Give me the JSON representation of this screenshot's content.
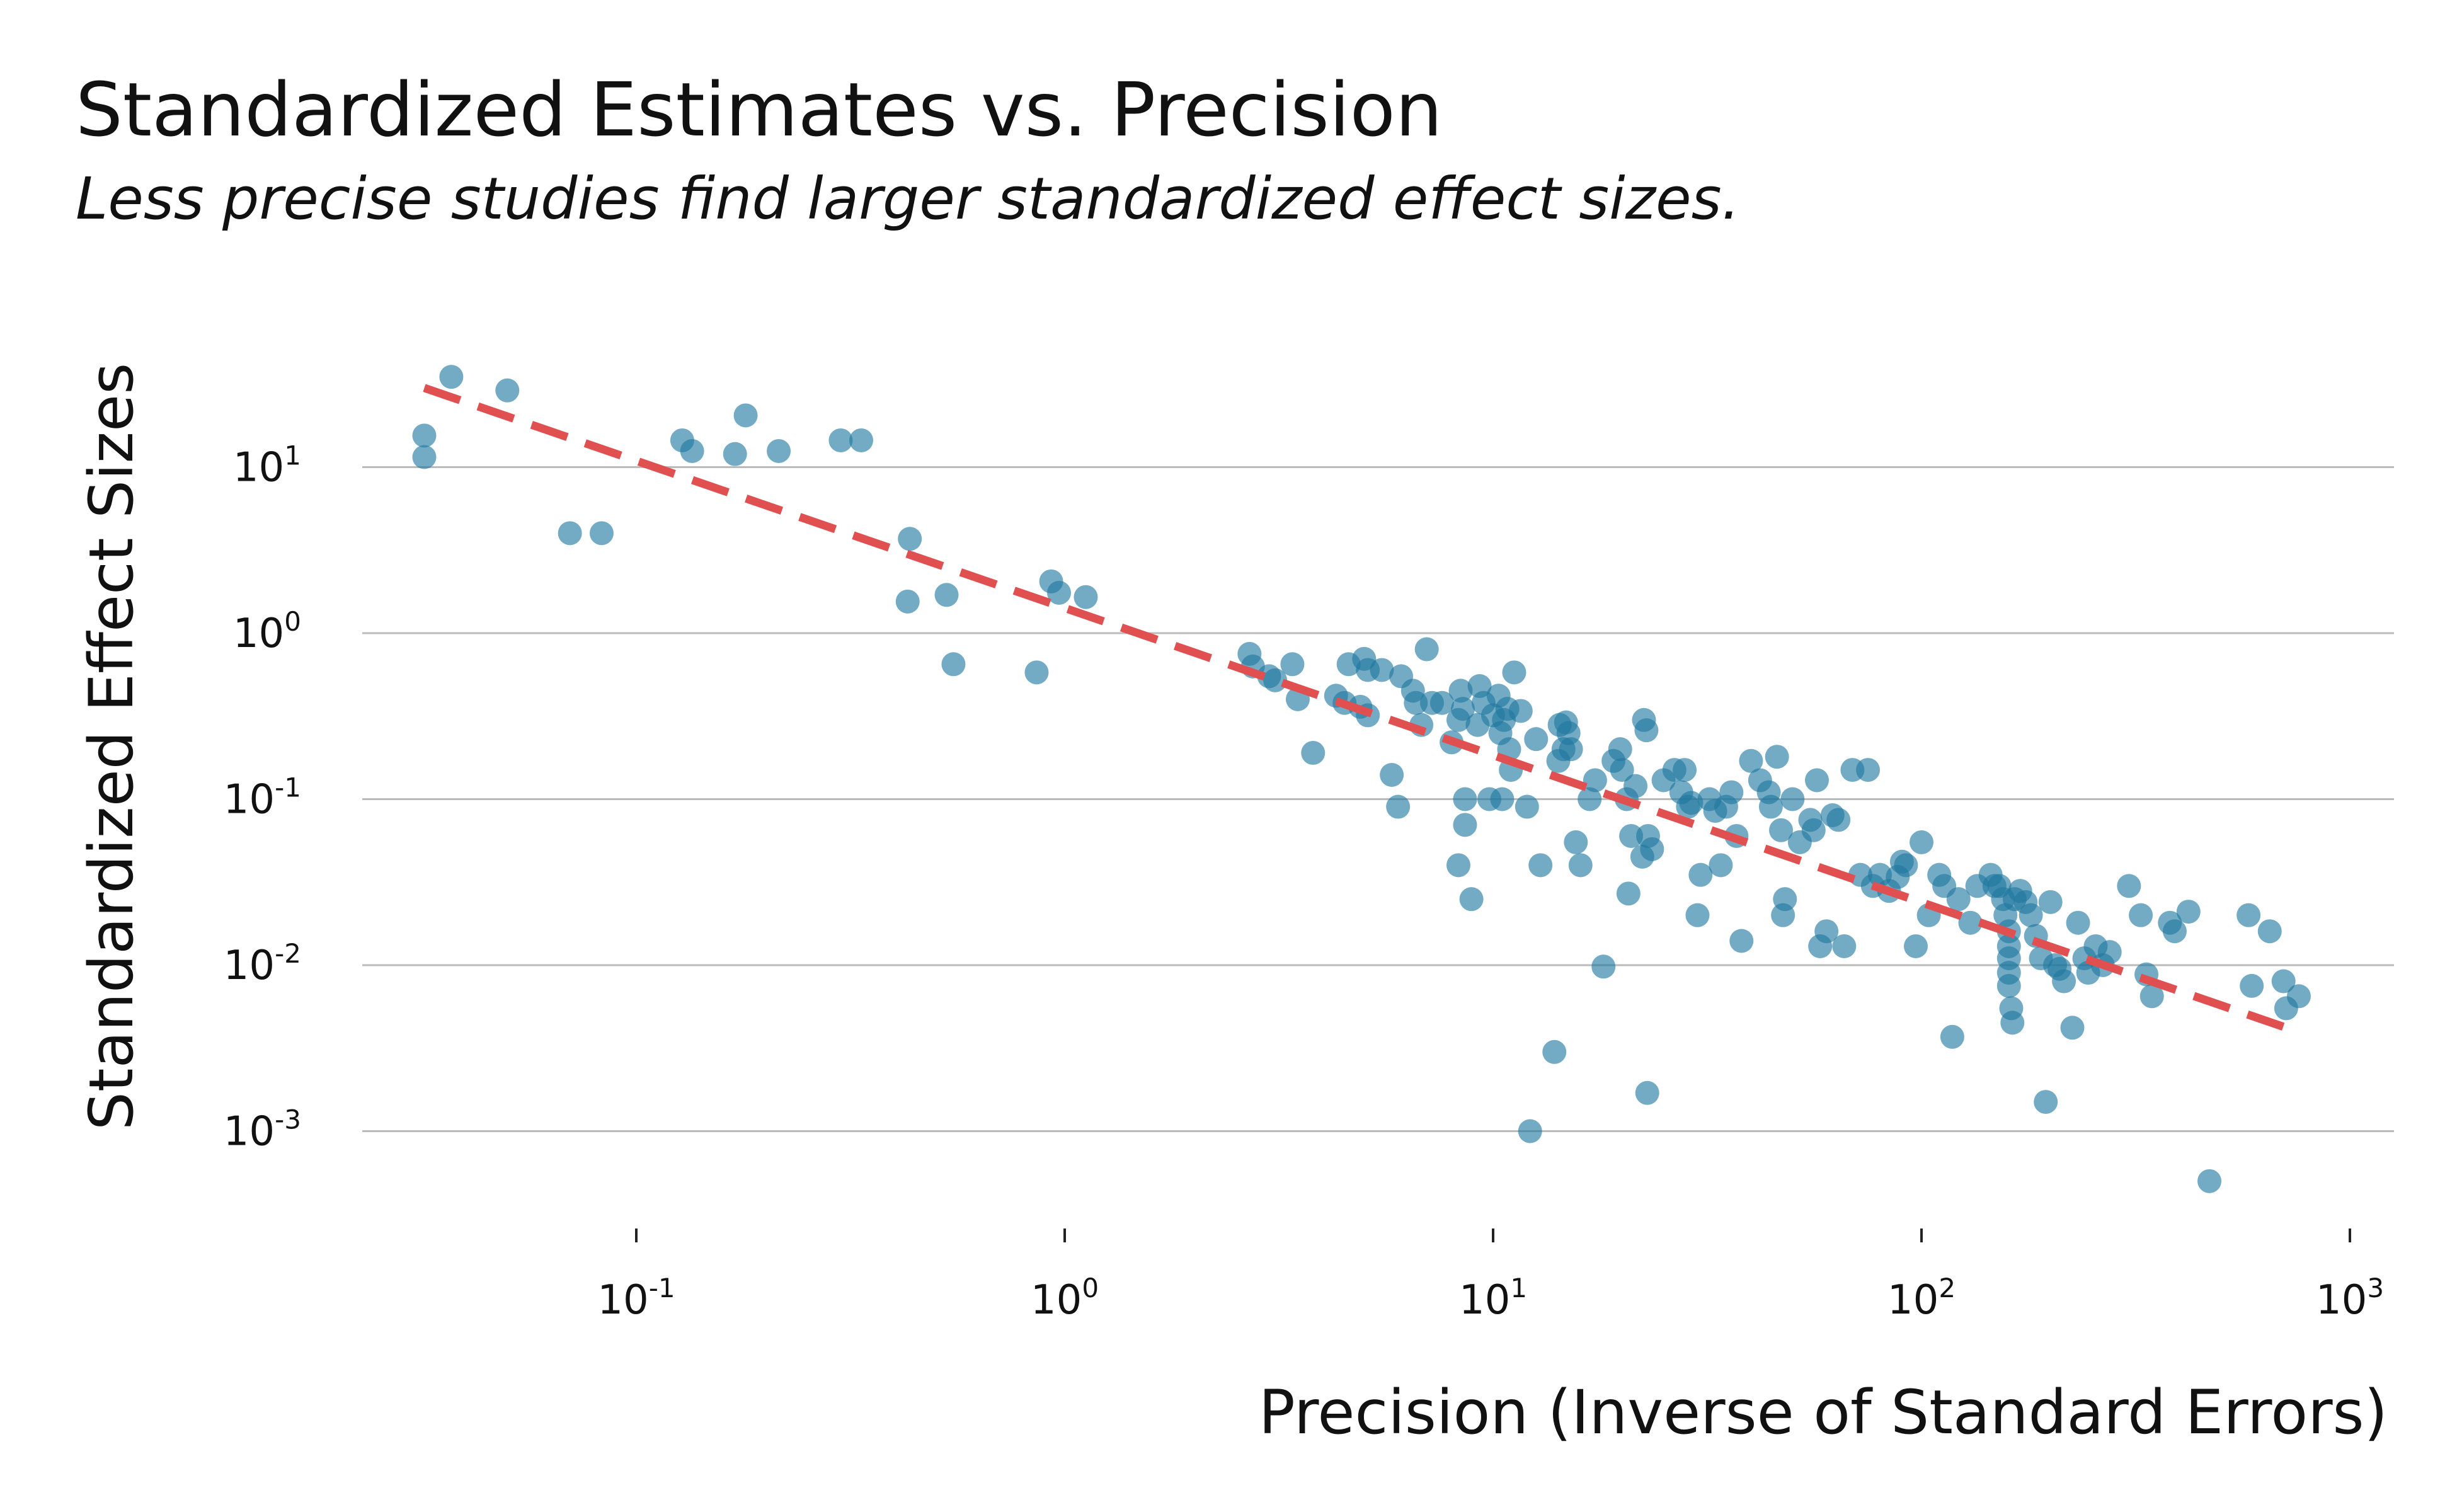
{
  "title": "Standardized Estimates vs. Precision",
  "subtitle": "Less precise studies find larger standardized effect sizes.",
  "chart_data": {
    "type": "scatter",
    "title": "Standardized Estimates vs. Precision",
    "subtitle": "Less precise studies find larger standardized effect sizes.",
    "xlabel": "Precision (Inverse of Standard Errors)",
    "ylabel": "Standardized Effect Sizes",
    "xscale": "log",
    "yscale": "log",
    "xlim": [
      0.012,
      1000
    ],
    "ylim": [
      0.0002,
      60
    ],
    "xticks": [
      {
        "base": "10",
        "exp": "-1",
        "value": 0.1
      },
      {
        "base": "10",
        "exp": "0",
        "value": 1
      },
      {
        "base": "10",
        "exp": "1",
        "value": 10
      },
      {
        "base": "10",
        "exp": "2",
        "value": 100
      },
      {
        "base": "10",
        "exp": "3",
        "value": 1000
      }
    ],
    "yticks": [
      {
        "base": "10",
        "exp": "1",
        "value": 10
      },
      {
        "base": "10",
        "exp": "0",
        "value": 1
      },
      {
        "base": "10",
        "exp": "-1",
        "value": 0.1
      },
      {
        "base": "10",
        "exp": "-2",
        "value": 0.01
      },
      {
        "base": "10",
        "exp": "-3",
        "value": 0.001
      }
    ],
    "grid": "horizontal",
    "colors": {
      "points": "#1f77a0",
      "trend": "#e05050",
      "grid": "#bbbbbb"
    },
    "trend_line": {
      "style": "dashed",
      "x": [
        0.032,
        750
      ],
      "y": [
        30,
        0.004
      ]
    },
    "points": [
      [
        0.032,
        15.5
      ],
      [
        0.032,
        11.5
      ],
      [
        0.037,
        35
      ],
      [
        0.05,
        29
      ],
      [
        0.07,
        4
      ],
      [
        0.083,
        4
      ],
      [
        0.128,
        14.5
      ],
      [
        0.135,
        12.5
      ],
      [
        0.17,
        12
      ],
      [
        0.18,
        20.5
      ],
      [
        0.215,
        12.5
      ],
      [
        0.3,
        14.5
      ],
      [
        0.335,
        14.5
      ],
      [
        0.435,
        3.7
      ],
      [
        0.43,
        1.55
      ],
      [
        0.53,
        1.7
      ],
      [
        0.55,
        0.65
      ],
      [
        0.86,
        0.58
      ],
      [
        0.93,
        2.05
      ],
      [
        0.97,
        1.75
      ],
      [
        1.12,
        1.65
      ],
      [
        2.7,
        0.75
      ],
      [
        2.75,
        0.63
      ],
      [
        3.0,
        0.55
      ],
      [
        3.1,
        0.52
      ],
      [
        3.4,
        0.65
      ],
      [
        3.5,
        0.4
      ],
      [
        3.8,
        0.19
      ],
      [
        4.3,
        0.42
      ],
      [
        4.5,
        0.38
      ],
      [
        4.6,
        0.65
      ],
      [
        4.9,
        0.36
      ],
      [
        5.0,
        0.7
      ],
      [
        5.1,
        0.32
      ],
      [
        5.1,
        0.6
      ],
      [
        5.5,
        0.6
      ],
      [
        5.8,
        0.14
      ],
      [
        6.0,
        0.09
      ],
      [
        6.1,
        0.55
      ],
      [
        6.5,
        0.45
      ],
      [
        6.6,
        0.38
      ],
      [
        6.8,
        0.28
      ],
      [
        7.0,
        0.8
      ],
      [
        7.2,
        0.38
      ],
      [
        7.6,
        0.38
      ],
      [
        8.0,
        0.22
      ],
      [
        8.3,
        0.3
      ],
      [
        8.4,
        0.45
      ],
      [
        8.5,
        0.35
      ],
      [
        8.3,
        0.04
      ],
      [
        8.6,
        0.1
      ],
      [
        8.6,
        0.07
      ],
      [
        8.9,
        0.025
      ],
      [
        9.2,
        0.28
      ],
      [
        9.3,
        0.48
      ],
      [
        9.5,
        0.38
      ],
      [
        9.8,
        0.1
      ],
      [
        10.0,
        0.32
      ],
      [
        10.3,
        0.42
      ],
      [
        10.4,
        0.25
      ],
      [
        10.5,
        0.1
      ],
      [
        10.6,
        0.3
      ],
      [
        10.8,
        0.35
      ],
      [
        10.9,
        0.2
      ],
      [
        11.0,
        0.15
      ],
      [
        11.2,
        0.58
      ],
      [
        11.6,
        0.34
      ],
      [
        12.0,
        0.09
      ],
      [
        12.2,
        0.001
      ],
      [
        12.6,
        0.23
      ],
      [
        12.9,
        0.04
      ],
      [
        13.9,
        0.003
      ],
      [
        14.2,
        0.17
      ],
      [
        14.3,
        0.28
      ],
      [
        14.6,
        0.2
      ],
      [
        14.8,
        0.29
      ],
      [
        15.0,
        0.25
      ],
      [
        15.2,
        0.2
      ],
      [
        15.6,
        0.055
      ],
      [
        16.0,
        0.04
      ],
      [
        16.8,
        0.1
      ],
      [
        17.3,
        0.13
      ],
      [
        18.1,
        0.0098
      ],
      [
        19.1,
        0.17
      ],
      [
        19.8,
        0.2
      ],
      [
        20.0,
        0.15
      ],
      [
        20.5,
        0.1
      ],
      [
        20.7,
        0.027
      ],
      [
        21.0,
        0.06
      ],
      [
        21.5,
        0.12
      ],
      [
        22.3,
        0.045
      ],
      [
        22.5,
        0.3
      ],
      [
        22.8,
        0.26
      ],
      [
        22.9,
        0.0017
      ],
      [
        23.0,
        0.06
      ],
      [
        23.5,
        0.05
      ],
      [
        25.0,
        0.13
      ],
      [
        26.5,
        0.15
      ],
      [
        27.5,
        0.11
      ],
      [
        28.0,
        0.15
      ],
      [
        28.5,
        0.09
      ],
      [
        29.0,
        0.095
      ],
      [
        30.0,
        0.02
      ],
      [
        30.5,
        0.035
      ],
      [
        32.0,
        0.1
      ],
      [
        33.0,
        0.085
      ],
      [
        34.0,
        0.04
      ],
      [
        35.0,
        0.09
      ],
      [
        36.0,
        0.11
      ],
      [
        37.0,
        0.06
      ],
      [
        38.0,
        0.014
      ],
      [
        40.0,
        0.17
      ],
      [
        42.0,
        0.13
      ],
      [
        44.0,
        0.11
      ],
      [
        44.5,
        0.09
      ],
      [
        46.0,
        0.18
      ],
      [
        47.0,
        0.065
      ],
      [
        48.0,
        0.025
      ],
      [
        47.5,
        0.02
      ],
      [
        50.0,
        0.1
      ],
      [
        52.0,
        0.055
      ],
      [
        55.0,
        0.075
      ],
      [
        56.0,
        0.065
      ],
      [
        57.0,
        0.13
      ],
      [
        58.0,
        0.013
      ],
      [
        60.0,
        0.016
      ],
      [
        62.0,
        0.08
      ],
      [
        64.0,
        0.075
      ],
      [
        66.0,
        0.013
      ],
      [
        69.0,
        0.15
      ],
      [
        72.0,
        0.035
      ],
      [
        75.0,
        0.15
      ],
      [
        77.0,
        0.03
      ],
      [
        80.0,
        0.035
      ],
      [
        84.0,
        0.028
      ],
      [
        88.0,
        0.034
      ],
      [
        90.0,
        0.042
      ],
      [
        92.0,
        0.04
      ],
      [
        97.0,
        0.013
      ],
      [
        100.0,
        0.055
      ],
      [
        104.0,
        0.02
      ],
      [
        110.0,
        0.035
      ],
      [
        113.0,
        0.03
      ],
      [
        118.0,
        0.0037
      ],
      [
        122.0,
        0.025
      ],
      [
        130.0,
        0.018
      ],
      [
        135.0,
        0.03
      ],
      [
        145.0,
        0.035
      ],
      [
        148.0,
        0.03
      ],
      [
        152.0,
        0.03
      ],
      [
        155.0,
        0.025
      ],
      [
        157.0,
        0.02
      ],
      [
        160.0,
        0.016
      ],
      [
        160.0,
        0.013
      ],
      [
        160.0,
        0.011
      ],
      [
        160.0,
        0.009
      ],
      [
        160.0,
        0.0075
      ],
      [
        162.0,
        0.0055
      ],
      [
        163.0,
        0.0045
      ],
      [
        165.0,
        0.025
      ],
      [
        170.0,
        0.028
      ],
      [
        175.0,
        0.024
      ],
      [
        180.0,
        0.02
      ],
      [
        185.0,
        0.015
      ],
      [
        190.0,
        0.011
      ],
      [
        195.0,
        0.0015
      ],
      [
        200.0,
        0.024
      ],
      [
        205.0,
        0.01
      ],
      [
        210.0,
        0.0095
      ],
      [
        215.0,
        0.008
      ],
      [
        225.0,
        0.0042
      ],
      [
        232.0,
        0.018
      ],
      [
        240.0,
        0.011
      ],
      [
        245.0,
        0.009
      ],
      [
        255.0,
        0.013
      ],
      [
        265.0,
        0.01
      ],
      [
        275.0,
        0.012
      ],
      [
        305.0,
        0.03
      ],
      [
        325.0,
        0.02
      ],
      [
        335.0,
        0.0088
      ],
      [
        345.0,
        0.0065
      ],
      [
        380.0,
        0.018
      ],
      [
        390.0,
        0.016
      ],
      [
        420.0,
        0.021
      ],
      [
        470.0,
        0.0005
      ],
      [
        580.0,
        0.02
      ],
      [
        590.0,
        0.0075
      ],
      [
        650.0,
        0.016
      ],
      [
        700.0,
        0.008
      ],
      [
        710.0,
        0.0055
      ],
      [
        760.0,
        0.0065
      ]
    ]
  }
}
